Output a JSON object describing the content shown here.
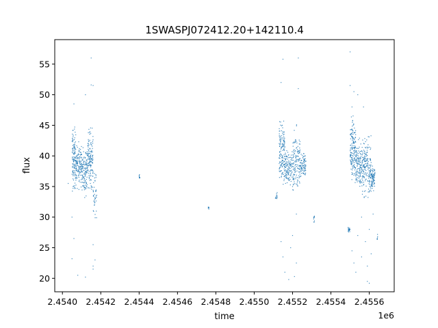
{
  "chart_data": {
    "type": "scatter",
    "title": "1SWASPJ072412.20+142110.4",
    "xlabel": "time",
    "ylabel": "flux",
    "x_offset_label": "1e6",
    "xlim": [
      2.45396,
      2.45573
    ],
    "ylim": [
      17.8,
      59.0
    ],
    "x_ticks": [
      2.454,
      2.4542,
      2.4544,
      2.4546,
      2.4548,
      2.455,
      2.4552,
      2.4554,
      2.4556
    ],
    "x_tick_labels": [
      "2.4540",
      "2.4542",
      "2.4544",
      "2.4546",
      "2.4548",
      "2.4550",
      "2.4552",
      "2.4554",
      "2.4556"
    ],
    "y_ticks": [
      20,
      25,
      30,
      35,
      40,
      45,
      50,
      55
    ],
    "y_tick_labels": [
      "20",
      "25",
      "30",
      "35",
      "40",
      "45",
      "50",
      "55"
    ],
    "grid": false,
    "marker_color": "#1f77b4",
    "series": [
      {
        "clusters": [
          {
            "x": [
              2.45405,
              2.45407
            ],
            "y": [
              33,
              47
            ],
            "center": 39.5,
            "n": 120
          },
          {
            "x": [
              2.45407,
              2.4541
            ],
            "y": [
              33.5,
              43
            ],
            "center": 38.5,
            "n": 120
          },
          {
            "x": [
              2.4541,
              2.45413
            ],
            "y": [
              33,
              43
            ],
            "center": 37.5,
            "n": 120
          },
          {
            "x": [
              2.45413,
              2.45416
            ],
            "y": [
              34,
              47
            ],
            "center": 39.5,
            "n": 140
          },
          {
            "x": [
              2.45416,
              2.45418
            ],
            "y": [
              28,
              38
            ],
            "center": 33.5,
            "n": 40
          },
          {
            "x": [
              2.4544,
              2.4544
            ],
            "y": [
              36,
              37
            ],
            "center": 36.5,
            "n": 10
          },
          {
            "x": [
              2.45476,
              2.45476
            ],
            "y": [
              31,
              32
            ],
            "center": 31.5,
            "n": 8
          },
          {
            "x": [
              2.45511,
              2.45512
            ],
            "y": [
              32.5,
              34.5
            ],
            "center": 33.5,
            "n": 12
          },
          {
            "x": [
              2.45513,
              2.45516
            ],
            "y": [
              32,
              47
            ],
            "center": 40,
            "n": 150
          },
          {
            "x": [
              2.45516,
              2.4552
            ],
            "y": [
              34,
              42
            ],
            "center": 38,
            "n": 120
          },
          {
            "x": [
              2.4552,
              2.45524
            ],
            "y": [
              34,
              48
            ],
            "center": 39,
            "n": 140
          },
          {
            "x": [
              2.45524,
              2.45527
            ],
            "y": [
              36,
              41
            ],
            "center": 38.5,
            "n": 80
          },
          {
            "x": [
              2.45531,
              2.45531
            ],
            "y": [
              28.5,
              32
            ],
            "center": 30,
            "n": 10
          },
          {
            "x": [
              2.45549,
              2.4555
            ],
            "y": [
              27.5,
              29
            ],
            "center": 28,
            "n": 20
          },
          {
            "x": [
              2.4555,
              2.45553
            ],
            "y": [
              33,
              48
            ],
            "center": 41,
            "n": 160
          },
          {
            "x": [
              2.45553,
              2.45557
            ],
            "y": [
              33,
              44
            ],
            "center": 38.5,
            "n": 160
          },
          {
            "x": [
              2.45557,
              2.45561
            ],
            "y": [
              33,
              46
            ],
            "center": 38,
            "n": 160
          },
          {
            "x": [
              2.45561,
              2.45563
            ],
            "y": [
              34,
              39
            ],
            "center": 36.5,
            "n": 80
          },
          {
            "x": [
              2.45564,
              2.45564
            ],
            "y": [
              26,
              27.5
            ],
            "center": 26.7,
            "n": 6
          }
        ],
        "outliers": [
          [
            2.45406,
            48.5
          ],
          [
            2.45408,
            20.5
          ],
          [
            2.45412,
            20.2
          ],
          [
            2.45415,
            56.0
          ],
          [
            2.45415,
            51.6
          ],
          [
            2.45416,
            51.5
          ],
          [
            2.45416,
            25.5
          ],
          [
            2.45416,
            22.0
          ],
          [
            2.45412,
            50.0
          ],
          [
            2.45405,
            23.2
          ],
          [
            2.45406,
            26.5
          ],
          [
            2.45405,
            30.0
          ],
          [
            2.45403,
            35.5
          ],
          [
            2.45417,
            23.0
          ],
          [
            2.45416,
            21.5
          ],
          [
            2.45515,
            55.8
          ],
          [
            2.45514,
            52.0
          ],
          [
            2.45516,
            21.0
          ],
          [
            2.45514,
            26.0
          ],
          [
            2.45515,
            23.5
          ],
          [
            2.45521,
            20.3
          ],
          [
            2.45522,
            22.5
          ],
          [
            2.45523,
            56.0
          ],
          [
            2.45518,
            19.8
          ],
          [
            2.4552,
            27.0
          ],
          [
            2.45519,
            25.0
          ],
          [
            2.45523,
            51.0
          ],
          [
            2.45522,
            30.5
          ],
          [
            2.4555,
            57.0
          ],
          [
            2.4555,
            51.5
          ],
          [
            2.45551,
            48.0
          ],
          [
            2.45552,
            50.5
          ],
          [
            2.45553,
            21.0
          ],
          [
            2.45552,
            22.5
          ],
          [
            2.45551,
            24.5
          ],
          [
            2.45554,
            50.0
          ],
          [
            2.45556,
            30.0
          ],
          [
            2.45559,
            19.5
          ],
          [
            2.4556,
            19.2
          ],
          [
            2.45558,
            26.0
          ],
          [
            2.4556,
            28.0
          ],
          [
            2.45561,
            24.0
          ],
          [
            2.45559,
            22.0
          ],
          [
            2.45557,
            48.0
          ],
          [
            2.45562,
            30.5
          ],
          [
            2.45554,
            27.0
          ],
          [
            2.45556,
            23.5
          ]
        ]
      }
    ]
  }
}
